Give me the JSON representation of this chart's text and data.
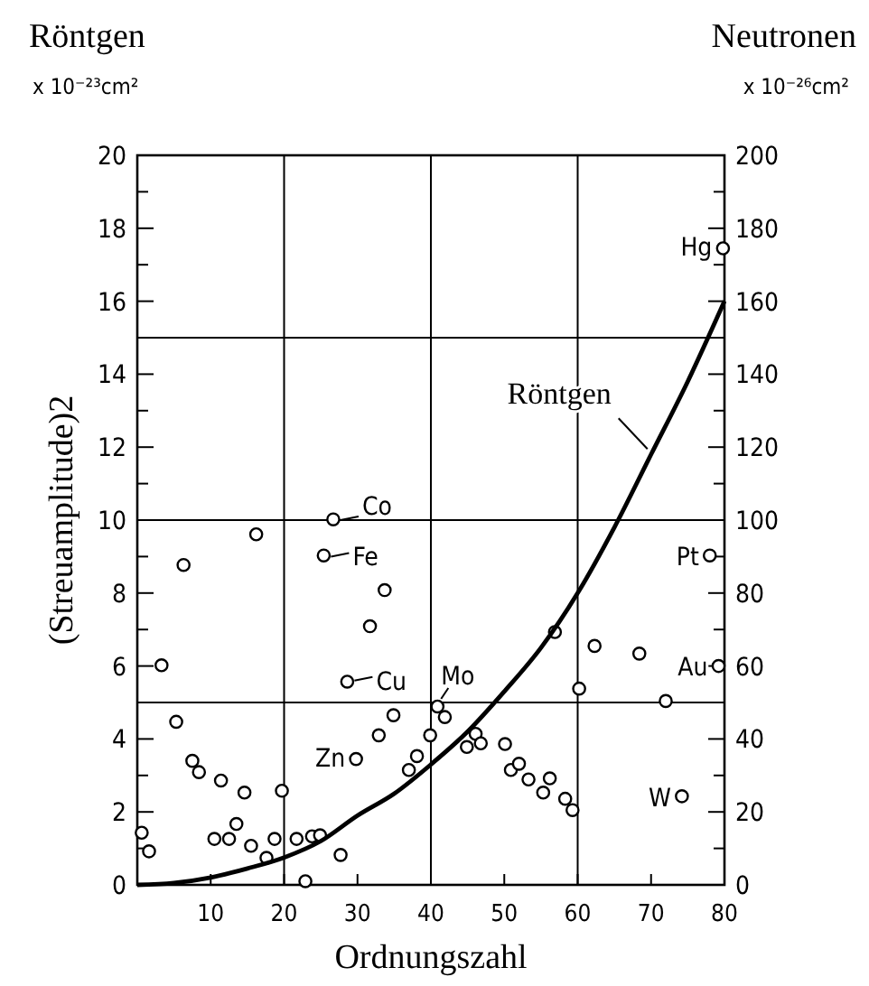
{
  "chart_data": {
    "type": "scatter",
    "ylabel": "(Streuamplitude)2",
    "xlabel": "Ordnungszahl",
    "annotations": [
      "Röntgen",
      "x 10⁻²³cm²",
      "Neutronen",
      "x 10⁻²⁶cm²",
      {
        "text": "Co",
        "x": 26.7,
        "y": 10.0
      },
      {
        "text": "Fe",
        "x": 25.4,
        "y": 9.0
      },
      {
        "text": "Cu",
        "x": 28.6,
        "y": 5.6
      },
      {
        "text": "Zn",
        "x": 29.8,
        "y": 3.5
      },
      {
        "text": "Mo",
        "x": 40.9,
        "y": 4.9
      },
      {
        "text": "Hg",
        "x": 79.8,
        "y": 17.5
      },
      {
        "text": "Pt",
        "x": 78,
        "y": 9.0
      },
      {
        "text": "Au",
        "x": 79.2,
        "y": 6.0
      },
      {
        "text": "W",
        "x": 74.2,
        "y": 2.4
      }
    ],
    "xlim": [
      0,
      80
    ],
    "ylim": [
      0,
      20
    ],
    "y2lim": [
      0,
      200
    ],
    "xticks": [
      {
        "value": 0,
        "label": null
      },
      10,
      20,
      30,
      40,
      50,
      60,
      70,
      80
    ],
    "yticks": [
      0,
      {
        "value": 1,
        "label": null
      },
      2,
      {
        "value": 3,
        "label": null
      },
      4,
      {
        "value": 5,
        "label": null
      },
      6,
      {
        "value": 7,
        "label": null
      },
      8,
      {
        "value": 9,
        "label": null
      },
      10,
      {
        "value": 11,
        "label": null
      },
      12,
      {
        "value": 13,
        "label": null
      },
      14,
      {
        "value": 15,
        "label": null
      },
      16,
      {
        "value": 17,
        "label": null
      },
      18,
      {
        "value": 19,
        "label": null
      },
      20
    ],
    "y2ticks": [
      0,
      {
        "value": 10,
        "label": null
      },
      20,
      {
        "value": 30,
        "label": null
      },
      40,
      {
        "value": 50,
        "label": null
      },
      60,
      {
        "value": 70,
        "label": null
      },
      80,
      {
        "value": 90,
        "label": null
      },
      100,
      {
        "value": 110,
        "label": null
      },
      120,
      {
        "value": 130,
        "label": null
      },
      140,
      {
        "value": 150,
        "label": null
      },
      160,
      {
        "value": 170,
        "label": null
      },
      180,
      {
        "value": 190,
        "label": null
      },
      200
    ],
    "grid": "x",
    "marker": "circle",
    "ref_lines": [
      {
        "axis": "y",
        "value": 5
      },
      {
        "axis": "y",
        "value": 10
      },
      {
        "axis": "y",
        "value": 15
      }
    ],
    "series": [
      {
        "axis": "y2",
        "color": "#000000",
        "x": [
          0.6,
          1.6,
          3.3,
          5.3,
          6.3,
          7.5,
          8.4,
          10.5,
          11.4,
          12.5,
          13.5,
          14.6,
          15.5,
          16.2,
          17.6,
          18.7,
          19.7,
          21.7,
          22.9,
          23.8,
          24.9,
          25.4,
          26.7,
          27.7,
          28.6,
          29.8,
          31.7,
          32.9,
          33.7,
          34.9,
          37,
          38.1,
          39.9,
          40.9,
          41.9,
          44.9,
          46.1,
          46.8,
          50.1,
          50.9,
          52,
          53.3,
          55.3,
          56.2,
          56.9,
          58.3,
          59.3,
          60.2,
          62.3,
          68.4,
          72,
          74.2,
          78,
          79.2,
          79.8
        ],
        "values": [
          14.3,
          9.2,
          60.2,
          44.7,
          87.7,
          34,
          30.9,
          12.6,
          28.6,
          12.6,
          16.7,
          25.3,
          10.7,
          96.1,
          7.4,
          12.6,
          25.8,
          12.6,
          1,
          13.3,
          13.6,
          90.3,
          100.2,
          8.2,
          55.7,
          34.5,
          70.9,
          41,
          80.8,
          46.5,
          31.5,
          35.3,
          41,
          48.9,
          46,
          37.8,
          41.4,
          38.8,
          38.6,
          31.5,
          33.2,
          28.9,
          25.3,
          29.2,
          69.3,
          23.6,
          20.5,
          53.8,
          65.5,
          63.4,
          50.4,
          24.3,
          90.3,
          60,
          174.5
        ]
      },
      {
        "type": "line",
        "name": "Röntgen",
        "color": "#000000",
        "marker": "none",
        "x": [
          0,
          5,
          10,
          15,
          20,
          25,
          30,
          35,
          40,
          45,
          50,
          55,
          60,
          65,
          70,
          75,
          80
        ],
        "values": [
          0,
          0.05,
          0.2,
          0.45,
          0.75,
          1.2,
          1.9,
          2.5,
          3.3,
          4.2,
          5.3,
          6.5,
          8.0,
          9.8,
          11.8,
          13.8,
          16.0
        ]
      }
    ]
  }
}
